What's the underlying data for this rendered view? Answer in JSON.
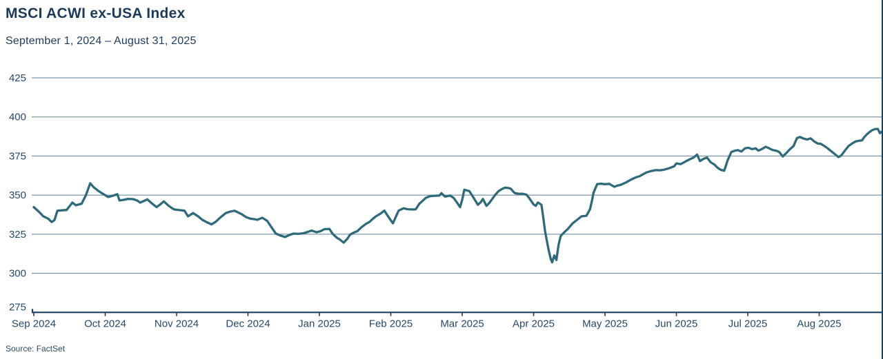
{
  "colors": {
    "title": "#1b3a5a",
    "axis": "#1e3f5c",
    "grid": "#5c7f99",
    "tick_label": "#26486a",
    "line": "#2f6a7b"
  },
  "chart_data": {
    "type": "line",
    "title": "MSCI ACWI ex-USA Index",
    "subtitle": "September 1, 2024 – August 31, 2025",
    "source": "Source: FactSet",
    "ylabel": "",
    "xlabel": "",
    "ylim": [
      275,
      425
    ],
    "y_ticks": [
      425,
      400,
      375,
      350,
      325,
      300,
      275
    ],
    "x_tick_labels": [
      "Sep 2024",
      "Oct 2024",
      "Nov 2024",
      "Dec 2024",
      "Jan 2025",
      "Feb 2025",
      "Mar 2025",
      "Apr 2025",
      "May 2025",
      "Jun 2025",
      "Jul 2025",
      "Aug 2025"
    ],
    "grid": "horizontal gridlines only",
    "legend": "none",
    "series": [
      {
        "name": "MSCI ACWI ex-USA Index",
        "x_unit": "months since Sep 1 2024",
        "points": [
          [
            0.0,
            342.3
          ],
          [
            0.08,
            339.0
          ],
          [
            0.13,
            336.5
          ],
          [
            0.2,
            335.0
          ],
          [
            0.25,
            332.8
          ],
          [
            0.29,
            334.0
          ],
          [
            0.33,
            340.0
          ],
          [
            0.4,
            340.3
          ],
          [
            0.46,
            340.5
          ],
          [
            0.54,
            345.2
          ],
          [
            0.59,
            343.5
          ],
          [
            0.67,
            344.5
          ],
          [
            0.73,
            350.0
          ],
          [
            0.79,
            357.6
          ],
          [
            0.84,
            355.0
          ],
          [
            0.91,
            352.5
          ],
          [
            0.98,
            350.5
          ],
          [
            1.04,
            348.8
          ],
          [
            1.1,
            349.5
          ],
          [
            1.17,
            350.6
          ],
          [
            1.2,
            346.6
          ],
          [
            1.26,
            347.0
          ],
          [
            1.32,
            347.6
          ],
          [
            1.39,
            347.4
          ],
          [
            1.45,
            346.5
          ],
          [
            1.49,
            345.2
          ],
          [
            1.55,
            346.4
          ],
          [
            1.59,
            347.3
          ],
          [
            1.65,
            344.8
          ],
          [
            1.72,
            342.3
          ],
          [
            1.77,
            344.0
          ],
          [
            1.82,
            346.0
          ],
          [
            1.88,
            343.5
          ],
          [
            1.94,
            341.5
          ],
          [
            1.97,
            340.8
          ],
          [
            2.04,
            340.4
          ],
          [
            2.11,
            340.0
          ],
          [
            2.16,
            336.4
          ],
          [
            2.23,
            338.5
          ],
          [
            2.3,
            336.5
          ],
          [
            2.36,
            334.2
          ],
          [
            2.43,
            332.5
          ],
          [
            2.49,
            331.3
          ],
          [
            2.55,
            333.0
          ],
          [
            2.62,
            336.0
          ],
          [
            2.69,
            338.5
          ],
          [
            2.74,
            339.3
          ],
          [
            2.81,
            340.0
          ],
          [
            2.88,
            338.5
          ],
          [
            2.91,
            337.8
          ],
          [
            2.97,
            336.0
          ],
          [
            3.03,
            335.0
          ],
          [
            3.1,
            334.5
          ],
          [
            3.13,
            334.2
          ],
          [
            3.2,
            335.5
          ],
          [
            3.27,
            333.5
          ],
          [
            3.32,
            330.0
          ],
          [
            3.39,
            325.4
          ],
          [
            3.46,
            324.0
          ],
          [
            3.52,
            323.2
          ],
          [
            3.58,
            324.5
          ],
          [
            3.64,
            325.4
          ],
          [
            3.7,
            325.2
          ],
          [
            3.77,
            325.5
          ],
          [
            3.84,
            326.5
          ],
          [
            3.89,
            327.3
          ],
          [
            3.96,
            326.2
          ],
          [
            4.02,
            327.0
          ],
          [
            4.07,
            328.2
          ],
          [
            4.14,
            328.4
          ],
          [
            4.19,
            325.0
          ],
          [
            4.25,
            322.5
          ],
          [
            4.28,
            321.8
          ],
          [
            4.34,
            319.6
          ],
          [
            4.39,
            322.0
          ],
          [
            4.43,
            324.7
          ],
          [
            4.48,
            326.0
          ],
          [
            4.53,
            326.9
          ],
          [
            4.59,
            329.5
          ],
          [
            4.65,
            331.5
          ],
          [
            4.7,
            332.8
          ],
          [
            4.74,
            334.5
          ],
          [
            4.79,
            336.4
          ],
          [
            4.85,
            338.0
          ],
          [
            4.91,
            340.1
          ],
          [
            4.94,
            337.9
          ],
          [
            4.99,
            334.5
          ],
          [
            5.03,
            332.0
          ],
          [
            5.07,
            336.0
          ],
          [
            5.11,
            340.1
          ],
          [
            5.18,
            341.6
          ],
          [
            5.23,
            341.0
          ],
          [
            5.3,
            340.8
          ],
          [
            5.35,
            340.9
          ],
          [
            5.4,
            344.5
          ],
          [
            5.45,
            346.5
          ],
          [
            5.49,
            348.2
          ],
          [
            5.55,
            349.3
          ],
          [
            5.61,
            349.6
          ],
          [
            5.68,
            349.7
          ],
          [
            5.71,
            351.2
          ],
          [
            5.76,
            349.0
          ],
          [
            5.83,
            349.7
          ],
          [
            5.88,
            348.2
          ],
          [
            5.93,
            345.0
          ],
          [
            5.97,
            342.3
          ],
          [
            6.0,
            347.0
          ],
          [
            6.03,
            353.4
          ],
          [
            6.1,
            352.6
          ],
          [
            6.15,
            349.0
          ],
          [
            6.19,
            346.0
          ],
          [
            6.22,
            343.8
          ],
          [
            6.26,
            345.5
          ],
          [
            6.29,
            347.5
          ],
          [
            6.34,
            343.1
          ],
          [
            6.38,
            345.0
          ],
          [
            6.42,
            347.5
          ],
          [
            6.46,
            350.0
          ],
          [
            6.51,
            352.6
          ],
          [
            6.56,
            354.0
          ],
          [
            6.6,
            354.8
          ],
          [
            6.65,
            354.5
          ],
          [
            6.68,
            354.1
          ],
          [
            6.72,
            352.0
          ],
          [
            6.74,
            351.2
          ],
          [
            6.8,
            350.8
          ],
          [
            6.84,
            350.9
          ],
          [
            6.9,
            350.3
          ],
          [
            6.94,
            348.0
          ],
          [
            6.97,
            346.0
          ],
          [
            7.0,
            344.0
          ],
          [
            7.03,
            343.1
          ],
          [
            7.06,
            345.3
          ],
          [
            7.11,
            343.8
          ],
          [
            7.14,
            334.2
          ],
          [
            7.16,
            326.9
          ],
          [
            7.21,
            315.1
          ],
          [
            7.24,
            309.2
          ],
          [
            7.26,
            307.0
          ],
          [
            7.29,
            311.4
          ],
          [
            7.32,
            308.5
          ],
          [
            7.35,
            318.1
          ],
          [
            7.38,
            323.9
          ],
          [
            7.43,
            326.2
          ],
          [
            7.48,
            328.4
          ],
          [
            7.55,
            332.1
          ],
          [
            7.61,
            334.2
          ],
          [
            7.67,
            336.4
          ],
          [
            7.74,
            336.8
          ],
          [
            7.79,
            341.0
          ],
          [
            7.82,
            347.0
          ],
          [
            7.84,
            351.5
          ],
          [
            7.89,
            357.0
          ],
          [
            7.94,
            357.3
          ],
          [
            8.0,
            357.0
          ],
          [
            8.06,
            357.2
          ],
          [
            8.13,
            355.3
          ],
          [
            8.17,
            356.0
          ],
          [
            8.22,
            356.6
          ],
          [
            8.29,
            358.0
          ],
          [
            8.35,
            359.5
          ],
          [
            8.39,
            360.5
          ],
          [
            8.44,
            361.5
          ],
          [
            8.48,
            362.0
          ],
          [
            8.54,
            363.5
          ],
          [
            8.58,
            364.5
          ],
          [
            8.64,
            365.3
          ],
          [
            8.71,
            366.0
          ],
          [
            8.77,
            365.9
          ],
          [
            8.83,
            366.3
          ],
          [
            8.9,
            367.2
          ],
          [
            8.97,
            368.5
          ],
          [
            9.0,
            370.3
          ],
          [
            9.06,
            369.8
          ],
          [
            9.14,
            371.8
          ],
          [
            9.19,
            373.0
          ],
          [
            9.24,
            374.0
          ],
          [
            9.29,
            375.9
          ],
          [
            9.33,
            371.8
          ],
          [
            9.38,
            373.2
          ],
          [
            9.43,
            374.0
          ],
          [
            9.48,
            371.0
          ],
          [
            9.53,
            369.6
          ],
          [
            9.58,
            367.4
          ],
          [
            9.62,
            366.2
          ],
          [
            9.67,
            365.6
          ],
          [
            9.72,
            372.5
          ],
          [
            9.77,
            377.6
          ],
          [
            9.82,
            378.4
          ],
          [
            9.86,
            378.8
          ],
          [
            9.91,
            377.9
          ],
          [
            9.96,
            379.9
          ],
          [
            10.01,
            380.3
          ],
          [
            10.06,
            379.4
          ],
          [
            10.11,
            379.9
          ],
          [
            10.15,
            378.4
          ],
          [
            10.2,
            379.5
          ],
          [
            10.25,
            380.9
          ],
          [
            10.3,
            379.9
          ],
          [
            10.35,
            378.8
          ],
          [
            10.4,
            378.4
          ],
          [
            10.44,
            377.6
          ],
          [
            10.49,
            374.7
          ],
          [
            10.54,
            376.9
          ],
          [
            10.59,
            379.4
          ],
          [
            10.64,
            381.3
          ],
          [
            10.69,
            386.5
          ],
          [
            10.73,
            387.2
          ],
          [
            10.78,
            386.2
          ],
          [
            10.83,
            385.6
          ],
          [
            10.88,
            386.3
          ],
          [
            10.93,
            384.3
          ],
          [
            10.98,
            383.0
          ],
          [
            11.02,
            382.8
          ],
          [
            11.07,
            381.5
          ],
          [
            11.12,
            379.9
          ],
          [
            11.17,
            378.0
          ],
          [
            11.22,
            376.2
          ],
          [
            11.27,
            374.3
          ],
          [
            11.31,
            375.4
          ],
          [
            11.36,
            378.5
          ],
          [
            11.41,
            381.3
          ],
          [
            11.46,
            383.0
          ],
          [
            11.51,
            384.3
          ],
          [
            11.56,
            384.8
          ],
          [
            11.6,
            385.0
          ],
          [
            11.63,
            387.0
          ],
          [
            11.67,
            389.0
          ],
          [
            11.7,
            390.1
          ],
          [
            11.74,
            391.5
          ],
          [
            11.78,
            392.2
          ],
          [
            11.82,
            392.4
          ],
          [
            11.85,
            389.6
          ],
          [
            11.87,
            390.5
          ],
          [
            11.89,
            389.8
          ]
        ]
      }
    ]
  }
}
